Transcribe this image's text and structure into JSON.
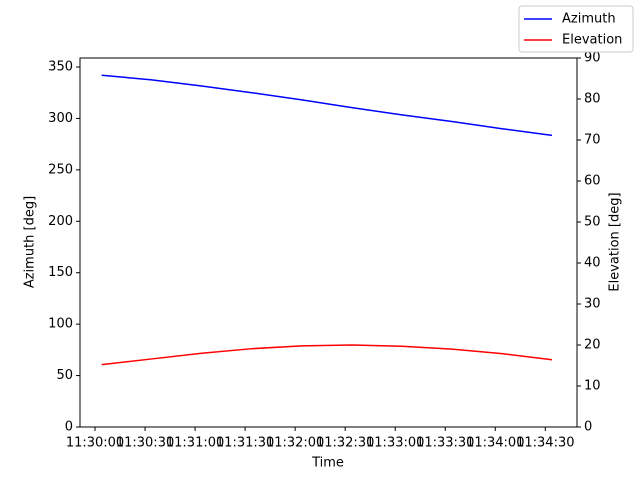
{
  "chart_data": {
    "type": "line",
    "x": [
      "11:30:04",
      "11:30:34",
      "11:31:04",
      "11:31:34",
      "11:32:04",
      "11:32:34",
      "11:33:04",
      "11:33:34",
      "11:34:04",
      "11:34:34"
    ],
    "series": [
      {
        "name": "Azimuth",
        "color": "#0000ff",
        "values": [
          342,
          337.5,
          331.5,
          325,
          318,
          310.5,
          303.5,
          297,
          290,
          283.5
        ]
      },
      {
        "name": "Elevation",
        "color": "#ff0000",
        "axis": "y2",
        "values": [
          15.2,
          16.6,
          18,
          19.1,
          19.8,
          20,
          19.7,
          19,
          17.9,
          16.4
        ]
      }
    ],
    "xlabel": "Time",
    "ylabel": "Azimuth [deg]",
    "y2label": "Elevation [deg]",
    "xlim": [
      "11:29:51",
      "11:34:49"
    ],
    "xticks": [
      "11:30:00",
      "11:30:30",
      "11:31:00",
      "11:31:30",
      "11:32:00",
      "11:32:30",
      "11:33:00",
      "11:33:30",
      "11:34:00",
      "11:34:30"
    ],
    "ylim": [
      0,
      358.75
    ],
    "yticks": [
      0,
      50,
      100,
      150,
      200,
      250,
      300,
      350
    ],
    "y2lim": [
      0,
      90
    ],
    "y2ticks": [
      0,
      10,
      20,
      30,
      40,
      50,
      60,
      70,
      80,
      90
    ],
    "legend": "upper right"
  }
}
